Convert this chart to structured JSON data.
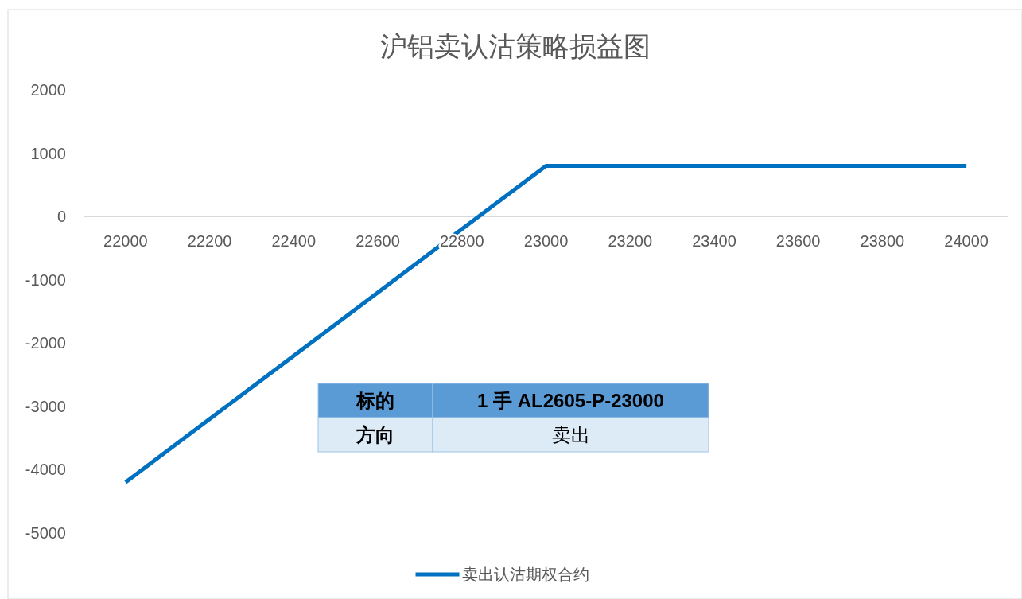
{
  "chart_data": {
    "type": "line",
    "title": "沪铝卖认沽策略损益图",
    "categories": [
      "22000",
      "22200",
      "22400",
      "22600",
      "22800",
      "23000",
      "23200",
      "23400",
      "23600",
      "23800",
      "24000"
    ],
    "series": [
      {
        "name": "卖出认沽期权合约",
        "color": "#0070c0",
        "values": [
          -4200,
          -3200,
          -2200,
          -1200,
          -200,
          800,
          800,
          800,
          800,
          800,
          800
        ]
      }
    ],
    "ylim": [
      -5000,
      2000
    ],
    "yticks": [
      -5000,
      -4000,
      -3000,
      -2000,
      -1000,
      0,
      1000,
      2000
    ],
    "legend": "bottom",
    "annotations": [
      "标的",
      "1 手 AL2605-P-23000",
      "方向",
      "卖出"
    ]
  }
}
